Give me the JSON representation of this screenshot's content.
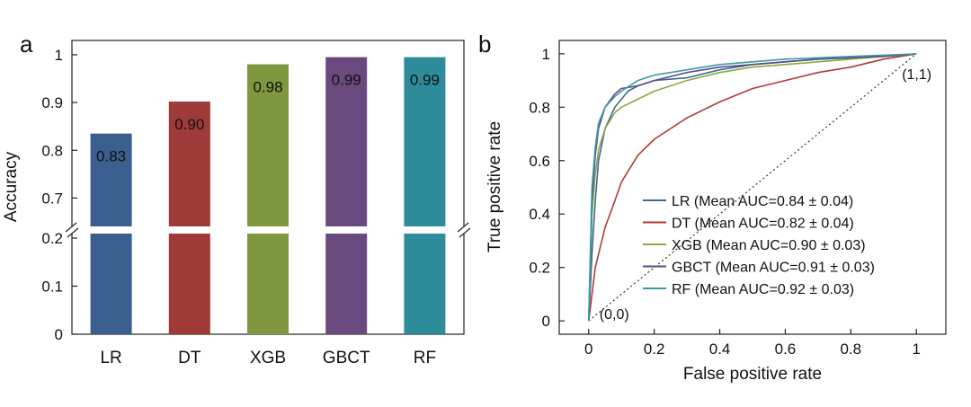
{
  "panels": {
    "a": "a",
    "b": "b"
  },
  "chart_data": [
    {
      "type": "bar",
      "panel": "a",
      "ylabel": "Accuracy",
      "categories": [
        "LR",
        "DT",
        "XGB",
        "GBCT",
        "RF"
      ],
      "values": [
        0.835,
        0.902,
        0.98,
        0.995,
        0.995
      ],
      "value_labels": [
        "0.83",
        "0.90",
        "0.98",
        "0.99",
        "0.99"
      ],
      "colors": [
        "#3a5f8f",
        "#9e3b38",
        "#7f973f",
        "#6a4a7e",
        "#2e8c9a"
      ],
      "axis_break": true,
      "lower_segment": {
        "range": [
          0,
          0.2
        ],
        "ticks": [
          "0",
          "0.1",
          "0.2"
        ]
      },
      "upper_segment": {
        "range": [
          0.65,
          1.03
        ],
        "ticks": [
          "0.7",
          "0.8",
          "0.9",
          "1"
        ]
      }
    },
    {
      "type": "line",
      "panel": "b",
      "xlabel": "False positive rate",
      "ylabel": "True positive rate",
      "xlim": [
        -0.09,
        1.09
      ],
      "ylim": [
        -0.05,
        1.05
      ],
      "xticks": [
        "0",
        "0.2",
        "0.4",
        "0.6",
        "0.8",
        "1"
      ],
      "yticks": [
        "0",
        "0.2",
        "0.4",
        "0.6",
        "0.8",
        "1"
      ],
      "legend_position": "lower-right",
      "annotations": [
        "(0,0)",
        "(1,1)"
      ],
      "chance_line": {
        "x": [
          0,
          1
        ],
        "y": [
          0,
          1
        ],
        "style": "dotted"
      },
      "series": [
        {
          "name": "LR (Mean AUC=0.84 ± 0.04)",
          "color": "#3a6a94",
          "x": [
            0,
            0.01,
            0.02,
            0.03,
            0.05,
            0.08,
            0.1,
            0.12,
            0.15,
            0.2,
            0.3,
            0.4,
            0.5,
            0.6,
            0.7,
            0.8,
            0.9,
            1
          ],
          "y": [
            0,
            0.25,
            0.45,
            0.6,
            0.72,
            0.8,
            0.83,
            0.86,
            0.88,
            0.9,
            0.91,
            0.94,
            0.96,
            0.97,
            0.98,
            0.985,
            0.99,
            1
          ]
        },
        {
          "name": "DT (Mean AUC=0.82 ± 0.04)",
          "color": "#b23a35",
          "x": [
            0,
            0.02,
            0.05,
            0.08,
            0.1,
            0.15,
            0.2,
            0.25,
            0.3,
            0.4,
            0.5,
            0.6,
            0.7,
            0.8,
            0.9,
            1
          ],
          "y": [
            0,
            0.2,
            0.35,
            0.45,
            0.52,
            0.62,
            0.68,
            0.72,
            0.76,
            0.82,
            0.87,
            0.9,
            0.93,
            0.95,
            0.98,
            1
          ]
        },
        {
          "name": "XGB (Mean AUC=0.90 ± 0.03)",
          "color": "#8aaa3c",
          "x": [
            0,
            0.01,
            0.02,
            0.03,
            0.05,
            0.08,
            0.1,
            0.15,
            0.2,
            0.3,
            0.4,
            0.5,
            0.6,
            0.7,
            0.8,
            0.9,
            1
          ],
          "y": [
            0,
            0.4,
            0.55,
            0.64,
            0.72,
            0.78,
            0.8,
            0.83,
            0.86,
            0.9,
            0.93,
            0.95,
            0.96,
            0.97,
            0.98,
            0.99,
            1
          ]
        },
        {
          "name": "GBCT (Mean AUC=0.91 ± 0.03)",
          "color": "#5e4a86",
          "x": [
            0,
            0.01,
            0.02,
            0.03,
            0.05,
            0.08,
            0.1,
            0.15,
            0.2,
            0.3,
            0.4,
            0.5,
            0.6,
            0.7,
            0.8,
            0.9,
            1
          ],
          "y": [
            0,
            0.45,
            0.62,
            0.72,
            0.8,
            0.85,
            0.87,
            0.88,
            0.9,
            0.93,
            0.95,
            0.96,
            0.97,
            0.98,
            0.985,
            0.99,
            1
          ]
        },
        {
          "name": "RF (Mean AUC=0.92 ± 0.03)",
          "color": "#3b9aa6",
          "x": [
            0,
            0.01,
            0.02,
            0.03,
            0.05,
            0.08,
            0.1,
            0.15,
            0.2,
            0.3,
            0.4,
            0.5,
            0.6,
            0.7,
            0.8,
            0.9,
            1
          ],
          "y": [
            0,
            0.5,
            0.65,
            0.74,
            0.8,
            0.84,
            0.86,
            0.9,
            0.92,
            0.94,
            0.96,
            0.97,
            0.98,
            0.985,
            0.99,
            0.995,
            1
          ]
        }
      ]
    }
  ]
}
